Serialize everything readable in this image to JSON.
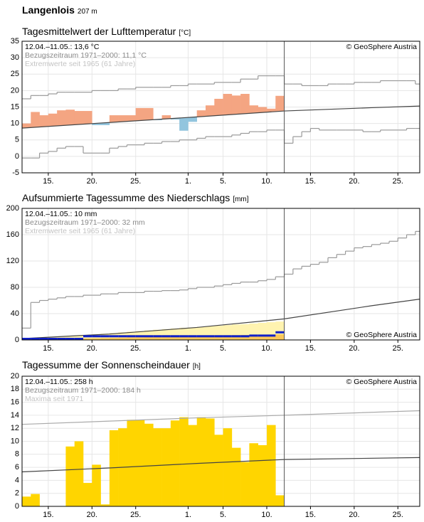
{
  "header": {
    "title": "Langenlois",
    "elevation": "207 m"
  },
  "chart_data": [
    {
      "type": "bar",
      "title": "Tagesmittelwert der Lufttemperatur",
      "unit": "[°C]",
      "annotations": [
        "12.04.–11.05.: 13,6 °C",
        "Bezugszeitraum 1971–2000: 11,1 °C",
        "Extremwerte seit 1965 (61 Jahre)"
      ],
      "credit": "© GeoSphere Austria",
      "credit_corner": "top-right",
      "xlim": [
        0,
        45.5
      ],
      "xticks": [
        {
          "value": 3,
          "label": "15."
        },
        {
          "value": 8,
          "label": "20."
        },
        {
          "value": 13,
          "label": "25."
        },
        {
          "value": 19,
          "label": "1."
        },
        {
          "value": 23,
          "label": "5."
        },
        {
          "value": 28,
          "label": "10."
        },
        {
          "value": 33,
          "label": "15."
        },
        {
          "value": 38,
          "label": "20."
        },
        {
          "value": 43,
          "label": "25."
        }
      ],
      "ylim": [
        -5,
        35
      ],
      "yticks": [
        -5,
        0,
        5,
        10,
        15,
        20,
        25,
        30,
        35
      ],
      "grid": true,
      "today": 30,
      "series": [
        {
          "type": "step",
          "color": "#9a9a9a",
          "values": [
            17.5,
            18.5,
            18.5,
            19,
            19.5,
            19.5,
            19.5,
            19.5,
            20,
            20,
            20,
            20.5,
            20.5,
            21,
            21,
            21,
            21,
            21.5,
            21.5,
            22,
            22,
            22,
            22.5,
            22.5,
            22.5,
            23.5,
            23.5,
            24.5,
            24.5,
            24.5,
            22,
            22,
            21.5,
            21.5,
            21.5,
            22,
            22,
            22,
            22.5,
            22.5,
            22.5,
            23,
            23,
            23,
            23,
            22
          ]
        },
        {
          "type": "step",
          "color": "#9a9a9a",
          "values": [
            -0.5,
            -0.5,
            1,
            1.5,
            2.5,
            3,
            3,
            1,
            1,
            1,
            2.5,
            3,
            3.5,
            3.5,
            4,
            4,
            4.5,
            4.5,
            5,
            5,
            5.5,
            6,
            6,
            6,
            6.5,
            7,
            7.5,
            7.5,
            8,
            8,
            4,
            6,
            7.5,
            8.5,
            8,
            8,
            8,
            8,
            8,
            7.5,
            7.5,
            8,
            8,
            8,
            8.5,
            8.5
          ]
        },
        {
          "type": "line",
          "color": "#444444",
          "x": [
            0,
            10,
            20,
            30,
            40,
            45.5
          ],
          "values": [
            8.6,
            10.3,
            12,
            13.8,
            14.8,
            15.3
          ]
        },
        {
          "type": "anomaly",
          "colors": {
            "above": "#f4a582",
            "below": "#92c5de"
          },
          "values": [
            10,
            13.5,
            12.5,
            13,
            14,
            14.2,
            13.8,
            13.8,
            9.5,
            9.5,
            12.5,
            12.5,
            12.5,
            14.7,
            14.7,
            11,
            12.5,
            11.2,
            7.8,
            10.5,
            14,
            15.5,
            17.5,
            19,
            18.5,
            19,
            15.5,
            15,
            14.5,
            18.4
          ]
        }
      ]
    },
    {
      "type": "area",
      "title": "Aufsummierte Tagessumme des Niederschlags",
      "unit": "[mm]",
      "annotations": [
        "12.04.–11.05.: 10 mm",
        "Bezugszeitraum 1971–2000: 32 mm",
        "Extremwerte seit 1965 (61 Jahre)"
      ],
      "credit": "© GeoSphere Austria",
      "credit_corner": "bottom-right",
      "xlim": [
        0,
        45.5
      ],
      "xticks": [
        {
          "value": 3,
          "label": "15."
        },
        {
          "value": 8,
          "label": "20."
        },
        {
          "value": 13,
          "label": "25."
        },
        {
          "value": 19,
          "label": "1."
        },
        {
          "value": 23,
          "label": "5."
        },
        {
          "value": 28,
          "label": "10."
        },
        {
          "value": 33,
          "label": "15."
        },
        {
          "value": 38,
          "label": "20."
        },
        {
          "value": 43,
          "label": "25."
        }
      ],
      "ylim": [
        0,
        200
      ],
      "yticks": [
        0,
        40,
        80,
        120,
        160,
        200
      ],
      "grid": true,
      "today": 30,
      "series": [
        {
          "type": "fill",
          "color": "#fff3b0",
          "values": [
            1,
            2,
            3,
            4,
            5,
            6,
            7,
            7.5,
            8.5,
            9.5,
            10.5,
            11.5,
            12.5,
            13.5,
            14.5,
            15.5,
            16.5,
            17.5,
            18.5,
            19,
            20,
            21,
            21.5,
            22.5,
            23.5,
            24,
            25,
            26,
            27,
            28
          ]
        },
        {
          "type": "fill",
          "color": "#fbc85a",
          "values": [
            0.3,
            0.6,
            0.9,
            1.2,
            1.5,
            1.8,
            2,
            2.3,
            2.6,
            2.9,
            3.2,
            3.5,
            3.8,
            4,
            4.3,
            4.6,
            4.9,
            5.2,
            5.5,
            5.8,
            6,
            6.3,
            6.6,
            6.9,
            7.2,
            7.5,
            7.7,
            8,
            8.2,
            8.5
          ]
        },
        {
          "type": "step",
          "color": "#9a9a9a",
          "values": [
            18,
            57,
            60,
            62,
            64,
            66,
            66,
            68,
            68,
            70,
            70,
            72,
            72,
            72,
            74,
            74,
            75,
            75,
            76,
            78,
            80,
            80,
            82,
            84,
            86,
            88,
            88,
            90,
            92,
            96,
            100,
            108,
            112,
            115,
            118,
            125,
            130,
            135,
            140,
            142,
            145,
            147,
            150,
            155,
            160,
            165
          ]
        },
        {
          "type": "line",
          "color": "#444444",
          "x": [
            0,
            10,
            20,
            30,
            40,
            45.5
          ],
          "values": [
            2,
            9,
            19,
            32,
            52,
            62
          ]
        },
        {
          "type": "thickstep",
          "color": "#1020c8",
          "values": [
            0,
            0,
            0,
            0,
            0,
            0,
            0,
            4,
            4,
            4,
            4,
            4,
            4,
            4,
            4,
            4,
            4,
            4,
            4,
            4,
            4,
            4,
            4,
            4,
            4,
            4,
            5,
            5,
            5,
            10
          ]
        }
      ]
    },
    {
      "type": "bar",
      "title": "Tagessumme der Sonnenscheindauer",
      "unit": "[h]",
      "annotations": [
        "12.04.–11.05.: 258 h",
        "Bezugszeitraum 1971–2000: 184 h",
        "Maxima seit 1971"
      ],
      "credit": "© GeoSphere Austria",
      "credit_corner": "top-right",
      "xlim": [
        0,
        45.5
      ],
      "xticks": [
        {
          "value": 3,
          "label": "15."
        },
        {
          "value": 8,
          "label": "20."
        },
        {
          "value": 13,
          "label": "25."
        },
        {
          "value": 19,
          "label": "1."
        },
        {
          "value": 23,
          "label": "5."
        },
        {
          "value": 28,
          "label": "10."
        },
        {
          "value": 33,
          "label": "15."
        },
        {
          "value": 38,
          "label": "20."
        },
        {
          "value": 43,
          "label": "25."
        }
      ],
      "ylim": [
        0,
        20
      ],
      "yticks": [
        0,
        2,
        4,
        6,
        8,
        10,
        12,
        14,
        16,
        18,
        20
      ],
      "grid": true,
      "today": 30,
      "series": [
        {
          "type": "dailybar",
          "color": "#ffd500",
          "values": [
            1.5,
            1.9,
            0,
            0,
            0,
            9.2,
            10,
            3.6,
            6.4,
            0.3,
            11.7,
            12,
            13.3,
            13.3,
            12.7,
            12,
            12,
            13.2,
            13.7,
            12.5,
            13.7,
            13.5,
            11,
            12,
            9,
            6.8,
            9.7,
            9.4,
            12.5,
            1.7
          ]
        },
        {
          "type": "line",
          "color": "#aaaaaa",
          "x": [
            0,
            10,
            20,
            30,
            45.5
          ],
          "values": [
            12.6,
            13.1,
            13.6,
            14,
            14.7
          ]
        },
        {
          "type": "line",
          "color": "#444444",
          "x": [
            0,
            10,
            20,
            30,
            45.5
          ],
          "values": [
            5.3,
            5.9,
            6.6,
            7.2,
            7.5
          ]
        }
      ]
    }
  ]
}
